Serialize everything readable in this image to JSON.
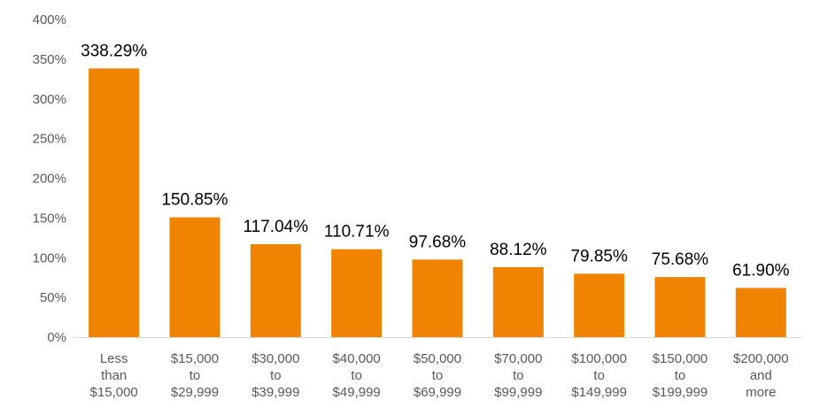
{
  "chart_data": {
    "type": "bar",
    "categories": [
      [
        "Less",
        "than",
        "$15,000"
      ],
      [
        "$15,000",
        "to",
        "$29,999"
      ],
      [
        "$30,000",
        "to",
        "$39,999"
      ],
      [
        "$40,000",
        "to",
        "$49,999"
      ],
      [
        "$50,000",
        "to",
        "$69,999"
      ],
      [
        "$70,000",
        "to",
        "$99,999"
      ],
      [
        "$100,000",
        "to",
        "$149,999"
      ],
      [
        "$150,000",
        "to",
        "$199,999"
      ],
      [
        "$200,000",
        "and",
        "more"
      ]
    ],
    "values": [
      338.29,
      150.85,
      117.04,
      110.71,
      97.68,
      88.12,
      79.85,
      75.68,
      61.9
    ],
    "data_labels": [
      "338.29%",
      "150.85%",
      "117.04%",
      "110.71%",
      "97.68%",
      "88.12%",
      "79.85%",
      "75.68%",
      "61.90%"
    ],
    "y_ticks": [
      0,
      50,
      100,
      150,
      200,
      250,
      300,
      350,
      400
    ],
    "y_tick_labels": [
      "0%",
      "50%",
      "100%",
      "150%",
      "200%",
      "250%",
      "300%",
      "350%",
      "400%"
    ],
    "ylim": [
      0,
      400
    ],
    "grid": false,
    "legend": "none",
    "bar_color": "#F08300",
    "axis_color": "#D9D9D9"
  }
}
